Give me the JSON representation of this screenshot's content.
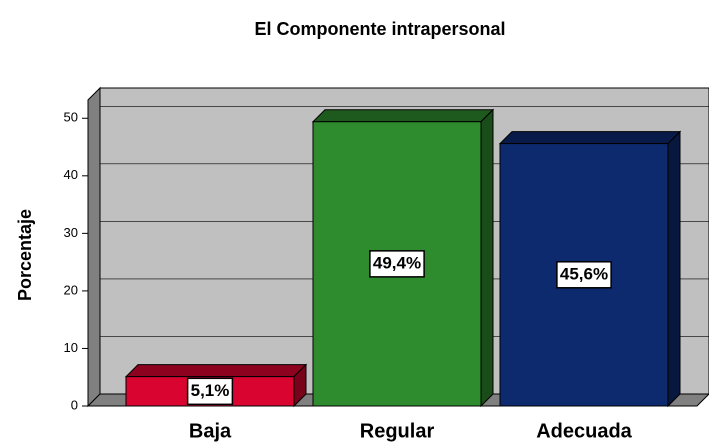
{
  "chart_data": {
    "type": "bar",
    "title": "El Componente intrapersonal",
    "y_label": "Porcentaje",
    "categories": [
      "Baja",
      "Regular",
      "Adecuada"
    ],
    "values": [
      5.1,
      49.4,
      45.6
    ],
    "value_labels": [
      "5,1%",
      "49,4%",
      "45,6%"
    ],
    "colors": [
      "#d9042f",
      "#2e8b2e",
      "#0d2a6e"
    ],
    "ylim": [
      0,
      53
    ],
    "yticks": [
      0,
      10,
      20,
      30,
      40,
      50
    ],
    "grid": true
  }
}
